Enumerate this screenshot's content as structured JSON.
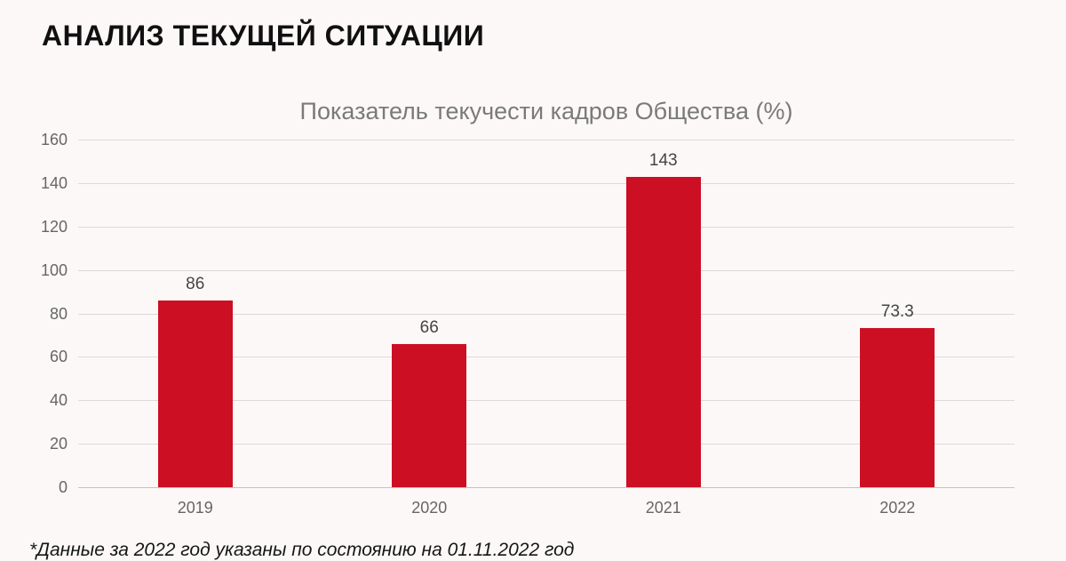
{
  "page": {
    "header": "АНАЛИЗ ТЕКУЩЕЙ СИТУАЦИИ",
    "footnote": "*Данные за 2022 год указаны по состоянию на 01.11.2022 год"
  },
  "chart_data": {
    "type": "bar",
    "title": "Показатель текучести кадров Общества (%)",
    "categories": [
      "2019",
      "2020",
      "2021",
      "2022"
    ],
    "values": [
      86,
      66,
      143,
      73.3
    ],
    "value_labels": [
      "86",
      "66",
      "143",
      "73.3"
    ],
    "xlabel": "",
    "ylabel": "",
    "ylim": [
      0,
      160
    ],
    "yticks": [
      0,
      20,
      40,
      60,
      80,
      100,
      120,
      140,
      160
    ],
    "grid": true,
    "legend": "none"
  },
  "colors": {
    "background": "#fdf8f8",
    "bar": "#cc0f23",
    "grid": "#dadada",
    "axis_text": "#666666",
    "title_text": "#7a7a7a",
    "header_text": "#101010",
    "value_text": "#444444"
  }
}
